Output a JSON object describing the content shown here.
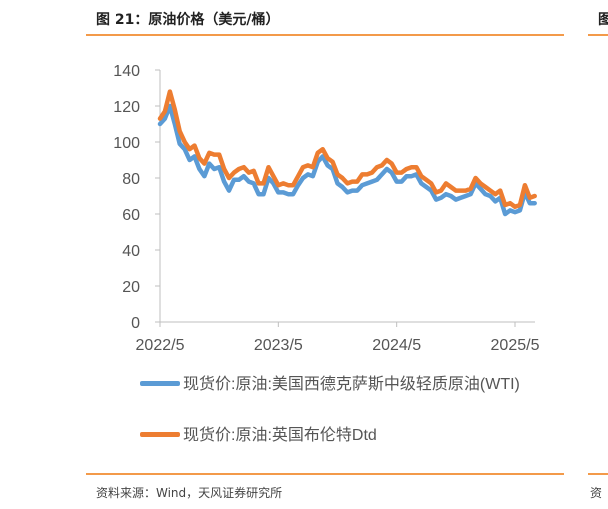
{
  "header": {
    "title": "图 21：原油价格（美元/桶）",
    "next_title": "图"
  },
  "footer": {
    "source": "资料来源：Wind，天风证券研究所",
    "next_source": "资"
  },
  "chart_data": {
    "type": "line",
    "title": "原油价格（美元/桶）",
    "ylim": [
      0,
      140
    ],
    "yticks": [
      "0",
      "20",
      "40",
      "60",
      "80",
      "100",
      "120",
      "140"
    ],
    "xticks": [
      "2022/5",
      "2023/5",
      "2024/5",
      "2025/5"
    ],
    "x": [
      "2022-05a",
      "2022-05b",
      "2022-06a",
      "2022-06b",
      "2022-07a",
      "2022-07b",
      "2022-08a",
      "2022-08b",
      "2022-09a",
      "2022-09b",
      "2022-10a",
      "2022-10b",
      "2022-11a",
      "2022-11b",
      "2022-12a",
      "2022-12b",
      "2023-01a",
      "2023-01b",
      "2023-02a",
      "2023-02b",
      "2023-03a",
      "2023-03b",
      "2023-04a",
      "2023-04b",
      "2023-05a",
      "2023-05b",
      "2023-06a",
      "2023-06b",
      "2023-07a",
      "2023-07b",
      "2023-08a",
      "2023-08b",
      "2023-09a",
      "2023-09b",
      "2023-10a",
      "2023-10b",
      "2023-11a",
      "2023-11b",
      "2023-12a",
      "2023-12b",
      "2024-01a",
      "2024-01b",
      "2024-02a",
      "2024-02b",
      "2024-03a",
      "2024-03b",
      "2024-04a",
      "2024-04b",
      "2024-05a",
      "2024-05b",
      "2024-06a",
      "2024-06b",
      "2024-07a",
      "2024-07b",
      "2024-08a",
      "2024-08b",
      "2024-09a",
      "2024-09b",
      "2024-10a",
      "2024-10b",
      "2024-11a",
      "2024-11b",
      "2024-12a",
      "2024-12b",
      "2025-01a",
      "2025-01b",
      "2025-02a",
      "2025-02b",
      "2025-03a",
      "2025-03b",
      "2025-04a",
      "2025-04b",
      "2025-05a",
      "2025-05b",
      "2025-06a",
      "2025-06b",
      "2025-07a"
    ],
    "series": [
      {
        "name": "现货价:原油:美国西德克萨斯中级轻质原油(WTI)",
        "color": "#5b9bd5",
        "values": [
          110,
          113,
          120,
          110,
          99,
          96,
          90,
          92,
          85,
          81,
          88,
          85,
          86,
          78,
          73,
          79,
          79,
          81,
          78,
          77,
          71,
          71,
          80,
          77,
          72,
          72,
          71,
          71,
          76,
          80,
          82,
          81,
          89,
          92,
          87,
          85,
          77,
          75,
          72,
          73,
          73,
          76,
          77,
          78,
          79,
          82,
          85,
          83,
          78,
          78,
          81,
          81,
          82,
          77,
          75,
          73,
          68,
          69,
          71,
          70,
          68,
          69,
          70,
          71,
          77,
          74,
          71,
          70,
          67,
          69,
          60,
          62,
          61,
          62,
          72,
          66,
          66
        ]
      },
      {
        "name": "现货价:原油:英国布伦特Dtd",
        "color": "#ed7d31",
        "values": [
          113,
          117,
          128,
          118,
          106,
          100,
          96,
          98,
          91,
          88,
          94,
          93,
          93,
          85,
          80,
          83,
          85,
          86,
          83,
          84,
          77,
          77,
          86,
          81,
          76,
          77,
          76,
          76,
          81,
          86,
          87,
          86,
          94,
          96,
          91,
          89,
          82,
          80,
          77,
          78,
          78,
          82,
          82,
          83,
          86,
          87,
          90,
          88,
          83,
          83,
          85,
          86,
          86,
          81,
          79,
          77,
          72,
          73,
          77,
          75,
          73,
          73,
          73,
          74,
          80,
          77,
          75,
          73,
          71,
          73,
          65,
          66,
          64,
          65,
          76,
          69,
          70
        ]
      }
    ]
  }
}
